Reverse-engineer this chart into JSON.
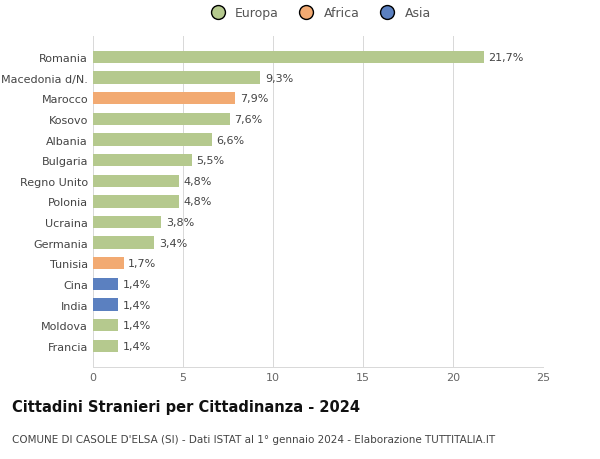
{
  "countries": [
    "Romania",
    "Macedonia d/N.",
    "Marocco",
    "Kosovo",
    "Albania",
    "Bulgaria",
    "Regno Unito",
    "Polonia",
    "Ucraina",
    "Germania",
    "Tunisia",
    "Cina",
    "India",
    "Moldova",
    "Francia"
  ],
  "values": [
    21.7,
    9.3,
    7.9,
    7.6,
    6.6,
    5.5,
    4.8,
    4.8,
    3.8,
    3.4,
    1.7,
    1.4,
    1.4,
    1.4,
    1.4
  ],
  "labels": [
    "21,7%",
    "9,3%",
    "7,9%",
    "7,6%",
    "6,6%",
    "5,5%",
    "4,8%",
    "4,8%",
    "3,8%",
    "3,4%",
    "1,7%",
    "1,4%",
    "1,4%",
    "1,4%",
    "1,4%"
  ],
  "continents": [
    "Europa",
    "Europa",
    "Africa",
    "Europa",
    "Europa",
    "Europa",
    "Europa",
    "Europa",
    "Europa",
    "Europa",
    "Africa",
    "Asia",
    "Asia",
    "Europa",
    "Europa"
  ],
  "colors": {
    "Europa": "#b5c98e",
    "Africa": "#f2aa72",
    "Asia": "#5b80c0"
  },
  "legend_order": [
    "Europa",
    "Africa",
    "Asia"
  ],
  "xlim": [
    0,
    25
  ],
  "xticks": [
    0,
    5,
    10,
    15,
    20,
    25
  ],
  "title": "Cittadini Stranieri per Cittadinanza - 2024",
  "subtitle": "COMUNE DI CASOLE D'ELSA (SI) - Dati ISTAT al 1° gennaio 2024 - Elaborazione TUTTITALIA.IT",
  "background_color": "#ffffff",
  "grid_color": "#d8d8d8",
  "label_fontsize": 8.0,
  "bar_label_fontsize": 8.0,
  "title_fontsize": 10.5,
  "subtitle_fontsize": 7.5
}
